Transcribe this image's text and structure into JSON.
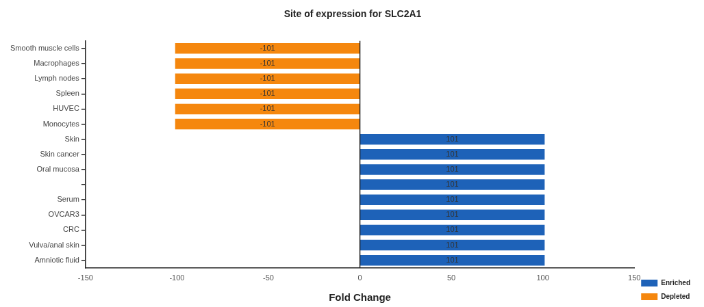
{
  "chart_data": {
    "type": "bar",
    "orientation": "horizontal",
    "title": "Site of expression for SLC2A1",
    "xlabel": "Fold Change",
    "categories": [
      "Smooth muscle cells",
      "Macrophages",
      "Lymph nodes",
      "Spleen",
      "HUVEC",
      "Monocytes",
      "Skin",
      "Skin cancer",
      "Oral mucosa",
      null,
      "Serum",
      "OVCAR3",
      "CRC",
      "Vulva/anal skin",
      "Amniotic fluid"
    ],
    "series": [
      {
        "name": "Enriched",
        "color": "#1e62b8",
        "values": [
          null,
          null,
          null,
          null,
          null,
          null,
          101,
          101,
          101,
          101,
          101,
          101,
          101,
          101,
          101
        ]
      },
      {
        "name": "Depleted",
        "color": "#f5870e",
        "values": [
          -101,
          -101,
          -101,
          -101,
          -101,
          -101,
          null,
          null,
          null,
          null,
          null,
          null,
          null,
          null,
          null
        ]
      }
    ],
    "xlim": [
      -150,
      150
    ],
    "xticks": [
      -150,
      -100,
      -50,
      0,
      50,
      100,
      150
    ],
    "ref_lines": [
      {
        "axis": "x",
        "value": 0,
        "color": "#222222"
      }
    ],
    "data_labels": true,
    "grid": false,
    "legend": "bottom right"
  }
}
